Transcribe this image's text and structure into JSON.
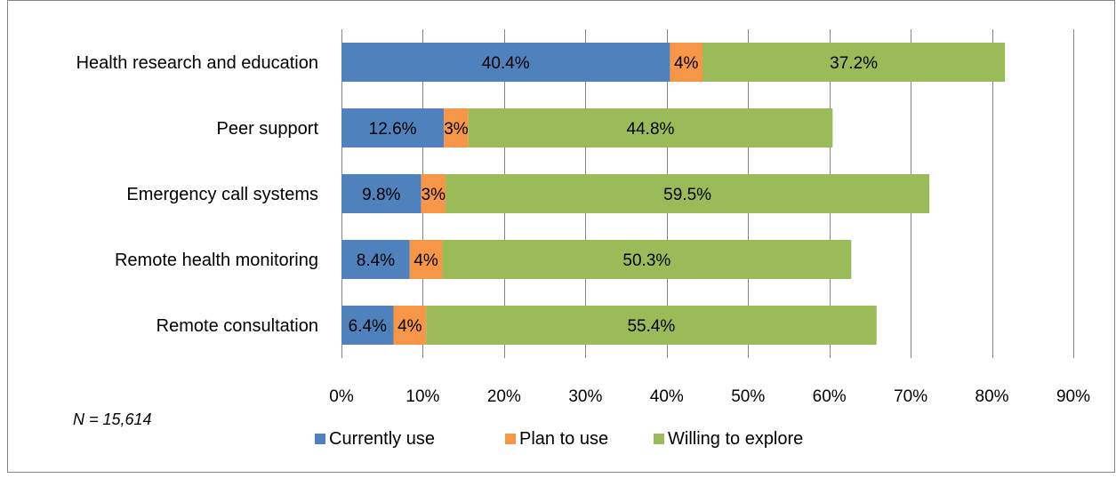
{
  "chart_data": {
    "type": "bar",
    "orientation": "horizontal",
    "stacked": true,
    "categories": [
      "Health research and education",
      "Peer support",
      "Emergency call systems",
      "Remote health monitoring",
      "Remote consultation"
    ],
    "series": [
      {
        "name": "Currently use",
        "color": "#4f81bd",
        "values": [
          40.4,
          12.6,
          9.8,
          8.4,
          6.4
        ],
        "labels": [
          "40.4%",
          "12.6%",
          "9.8%",
          "8.4%",
          "6.4%"
        ]
      },
      {
        "name": "Plan to use",
        "color": "#f79646",
        "values": [
          4,
          3,
          3,
          4,
          4
        ],
        "labels": [
          "4%",
          "3%",
          "3%",
          "4%",
          "4%"
        ]
      },
      {
        "name": "Willing to explore",
        "color": "#9bbb59",
        "values": [
          37.2,
          44.8,
          59.5,
          50.3,
          55.4
        ],
        "labels": [
          "37.2%",
          "44.8%",
          "59.5%",
          "50.3%",
          "55.4%"
        ]
      }
    ],
    "xlim": [
      0,
      90
    ],
    "x_ticks": [
      "0%",
      "10%",
      "20%",
      "30%",
      "40%",
      "50%",
      "60%",
      "70%",
      "80%",
      "90%"
    ],
    "x_tick_values": [
      0,
      10,
      20,
      30,
      40,
      50,
      60,
      70,
      80,
      90
    ],
    "grid": "vertical",
    "legend_position": "bottom",
    "note": "N = 15,614"
  },
  "colors": {
    "grid": "#868686",
    "frame": "#868686",
    "text": "#000000"
  }
}
